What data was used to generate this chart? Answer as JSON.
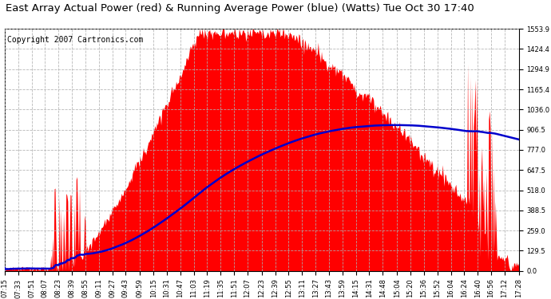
{
  "title": "East Array Actual Power (red) & Running Average Power (blue) (Watts) Tue Oct 30 17:40",
  "copyright": "Copyright 2007 Cartronics.com",
  "ylabel_values": [
    0.0,
    129.5,
    259.0,
    388.5,
    518.0,
    647.5,
    777.0,
    906.5,
    1036.0,
    1165.4,
    1294.9,
    1424.4,
    1553.9
  ],
  "ymax": 1553.9,
  "background_color": "#ffffff",
  "plot_bg_color": "#ffffff",
  "grid_color": "#b0b0b0",
  "bar_color": "#ff0000",
  "line_color": "#0000cc",
  "title_fontsize": 9.5,
  "copyright_fontsize": 7.0,
  "tick_fontsize": 6.0,
  "x_tick_labels": [
    "07:15",
    "07:33",
    "07:51",
    "08:07",
    "08:23",
    "08:39",
    "08:55",
    "09:11",
    "09:27",
    "09:43",
    "09:59",
    "10:15",
    "10:31",
    "10:47",
    "11:03",
    "11:19",
    "11:35",
    "11:51",
    "12:07",
    "12:23",
    "12:39",
    "12:55",
    "13:11",
    "13:27",
    "13:43",
    "13:59",
    "14:15",
    "14:31",
    "14:48",
    "15:04",
    "15:20",
    "15:36",
    "15:52",
    "16:04",
    "16:24",
    "16:40",
    "16:56",
    "17:12",
    "17:28"
  ]
}
